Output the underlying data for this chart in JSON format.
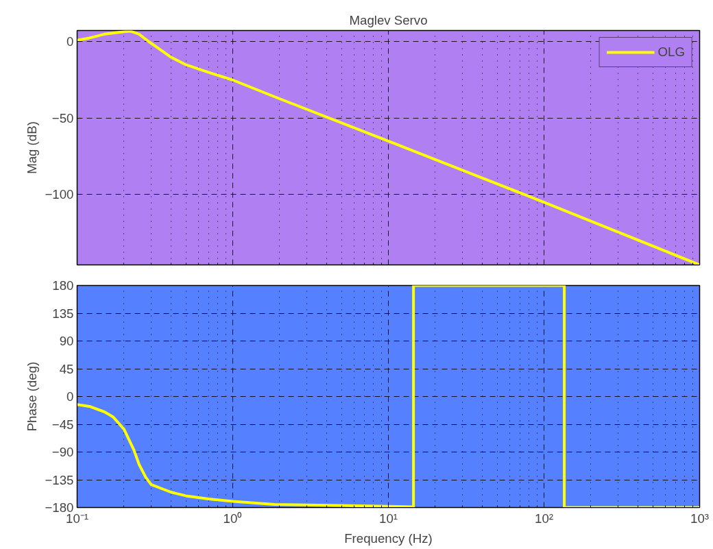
{
  "chart_data": [
    {
      "type": "line",
      "title": "Maglev Servo",
      "ylabel": "Mag (dB)",
      "log": "x",
      "grid": true,
      "legend": "top right",
      "tick_labels": "y",
      "xlim": [
        0.1,
        1000
      ],
      "xticks": [
        0.1,
        1,
        10,
        100,
        1000
      ],
      "ylim": [
        -146,
        7.4
      ],
      "yticks": [
        {
          "value": -100,
          "label": "−100"
        },
        {
          "value": -50,
          "label": "−50"
        },
        0
      ],
      "x": [
        0.1,
        0.12,
        0.15,
        0.2,
        0.22,
        0.25,
        0.29,
        0.33,
        0.4,
        0.5,
        0.7,
        1,
        1.86,
        10,
        100,
        1000
      ],
      "series": [
        {
          "name": "OLG",
          "color": "#ffff00",
          "values": [
            1,
            2.5,
            5,
            6.6,
            7,
            5,
            0,
            -4,
            -10,
            -15,
            -20,
            -25,
            -36,
            -65,
            -105,
            -146
          ]
        }
      ]
    },
    {
      "type": "line",
      "xlabel": "Frequency (Hz)",
      "ylabel": "Phase (deg)",
      "log": "x",
      "grid": true,
      "xlim": [
        0.1,
        1000
      ],
      "xticks": [
        {
          "value": 0.1,
          "label": "10⁻¹"
        },
        {
          "value": 1,
          "label": "10⁰"
        },
        {
          "value": 10,
          "label": "10¹"
        },
        {
          "value": 100,
          "label": "10²"
        },
        {
          "value": 1000,
          "label": "10³"
        }
      ],
      "ylim": [
        -180,
        180
      ],
      "yticks": [
        {
          "value": -180,
          "label": "−180"
        },
        {
          "value": -135,
          "label": "−135"
        },
        {
          "value": -90,
          "label": "−90"
        },
        {
          "value": -45,
          "label": "−45"
        },
        0,
        45,
        90,
        135,
        180
      ],
      "x": [
        0.1,
        0.12,
        0.15,
        0.17,
        0.2,
        0.232,
        0.25,
        0.276,
        0.3,
        0.4,
        0.5,
        0.7,
        1,
        1.86,
        10,
        14.5,
        14.5,
        135,
        135,
        1000
      ],
      "series": [
        {
          "color": "#ffff00",
          "values": [
            -13,
            -16,
            -25,
            -33,
            -53,
            -87,
            -110,
            -131,
            -143,
            -155,
            -161,
            -166,
            -170,
            -175,
            -178,
            -179,
            180,
            180,
            -180,
            -180
          ]
        }
      ]
    }
  ]
}
